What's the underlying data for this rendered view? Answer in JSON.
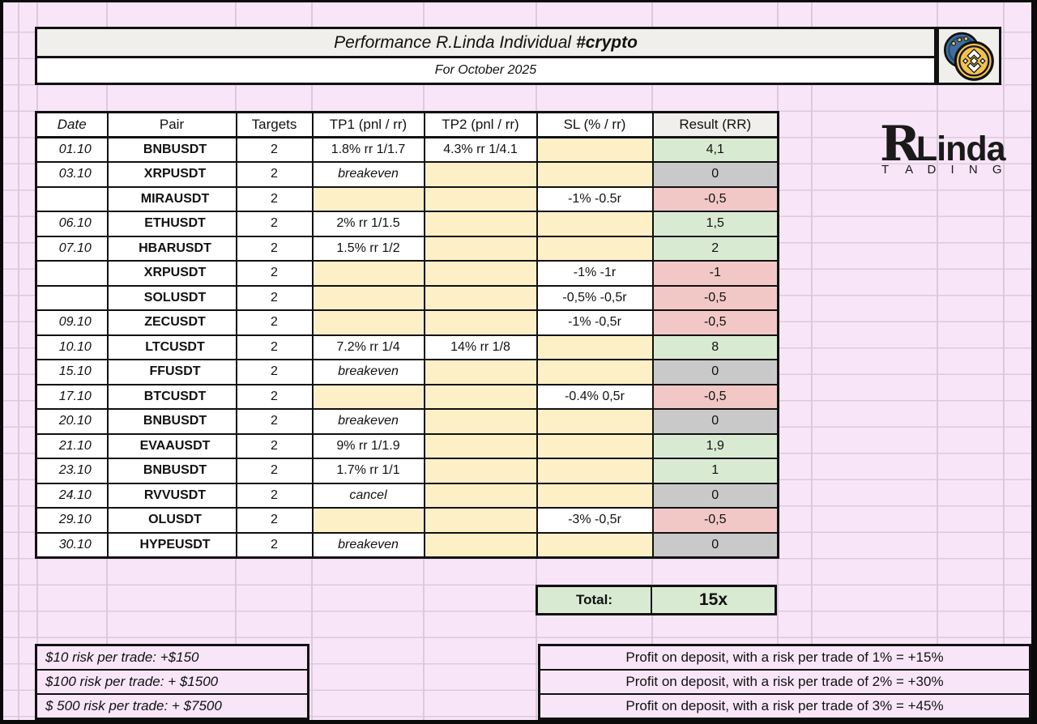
{
  "title": {
    "main": "Performance R.Linda Individual",
    "tag": "#crypto"
  },
  "subtitle": "For October 2025",
  "brand": {
    "r": "R",
    "name": "Linda",
    "sub_left": "T",
    "sub_right": "A D I N G",
    "coin_icons": "binance-coins-icon"
  },
  "table": {
    "headers": [
      "Date",
      "Pair",
      "Targets",
      "TP1 (pnl / rr)",
      "TP2 (pnl / rr)",
      "SL (% / rr)",
      "Result (RR)"
    ],
    "rows": [
      {
        "date": "01.10",
        "pair": "BNBUSDT",
        "targets": "2",
        "tp1": {
          "text": "1.8% rr 1/1.7",
          "kind": "value"
        },
        "tp2": {
          "text": "4.3% rr 1/4.1",
          "kind": "value"
        },
        "sl": {
          "text": "",
          "kind": "empty"
        },
        "result": {
          "text": "4,1",
          "kind": "green"
        }
      },
      {
        "date": "03.10",
        "pair": "XRPUSDT",
        "targets": "2",
        "tp1": {
          "text": "breakeven",
          "kind": "note"
        },
        "tp2": {
          "text": "",
          "kind": "empty"
        },
        "sl": {
          "text": "",
          "kind": "empty"
        },
        "result": {
          "text": "0",
          "kind": "gray"
        }
      },
      {
        "date": "",
        "pair": "MIRAUSDT",
        "targets": "2",
        "tp1": {
          "text": "",
          "kind": "empty"
        },
        "tp2": {
          "text": "",
          "kind": "empty"
        },
        "sl": {
          "text": "-1% -0.5r",
          "kind": "value"
        },
        "result": {
          "text": "-0,5",
          "kind": "red"
        }
      },
      {
        "date": "06.10",
        "pair": "ETHUSDT",
        "targets": "2",
        "tp1": {
          "text": "2% rr 1/1.5",
          "kind": "value"
        },
        "tp2": {
          "text": "",
          "kind": "empty"
        },
        "sl": {
          "text": "",
          "kind": "empty"
        },
        "result": {
          "text": "1,5",
          "kind": "green"
        }
      },
      {
        "date": "07.10",
        "pair": "HBARUSDT",
        "targets": "2",
        "tp1": {
          "text": "1.5% rr 1/2",
          "kind": "value"
        },
        "tp2": {
          "text": "",
          "kind": "empty"
        },
        "sl": {
          "text": "",
          "kind": "empty"
        },
        "result": {
          "text": "2",
          "kind": "green"
        }
      },
      {
        "date": "",
        "pair": "XRPUSDT",
        "targets": "2",
        "tp1": {
          "text": "",
          "kind": "empty"
        },
        "tp2": {
          "text": "",
          "kind": "empty"
        },
        "sl": {
          "text": "-1% -1r",
          "kind": "value"
        },
        "result": {
          "text": "-1",
          "kind": "red"
        }
      },
      {
        "date": "",
        "pair": "SOLUSDT",
        "targets": "2",
        "tp1": {
          "text": "",
          "kind": "empty"
        },
        "tp2": {
          "text": "",
          "kind": "empty"
        },
        "sl": {
          "text": "-0,5% -0,5r",
          "kind": "value"
        },
        "result": {
          "text": "-0,5",
          "kind": "red"
        }
      },
      {
        "date": "09.10",
        "pair": "ZECUSDT",
        "targets": "2",
        "tp1": {
          "text": "",
          "kind": "empty"
        },
        "tp2": {
          "text": "",
          "kind": "empty"
        },
        "sl": {
          "text": "-1% -0,5r",
          "kind": "value"
        },
        "result": {
          "text": "-0,5",
          "kind": "red"
        }
      },
      {
        "date": "10.10",
        "pair": "LTCUSDT",
        "targets": "2",
        "tp1": {
          "text": "7.2% rr 1/4",
          "kind": "value"
        },
        "tp2": {
          "text": "14% rr 1/8",
          "kind": "value"
        },
        "sl": {
          "text": "",
          "kind": "empty"
        },
        "result": {
          "text": "8",
          "kind": "green"
        }
      },
      {
        "date": "15.10",
        "pair": "FFUSDT",
        "targets": "2",
        "tp1": {
          "text": "breakeven",
          "kind": "note"
        },
        "tp2": {
          "text": "",
          "kind": "empty"
        },
        "sl": {
          "text": "",
          "kind": "empty"
        },
        "result": {
          "text": "0",
          "kind": "gray"
        }
      },
      {
        "date": "17.10",
        "pair": "BTCUSDT",
        "targets": "2",
        "tp1": {
          "text": "",
          "kind": "empty"
        },
        "tp2": {
          "text": "",
          "kind": "empty"
        },
        "sl": {
          "text": "-0.4% 0,5r",
          "kind": "value"
        },
        "result": {
          "text": "-0,5",
          "kind": "red"
        }
      },
      {
        "date": "20.10",
        "pair": "BNBUSDT",
        "targets": "2",
        "tp1": {
          "text": "breakeven",
          "kind": "note"
        },
        "tp2": {
          "text": "",
          "kind": "empty"
        },
        "sl": {
          "text": "",
          "kind": "empty"
        },
        "result": {
          "text": "0",
          "kind": "gray"
        }
      },
      {
        "date": "21.10",
        "pair": "EVAAUSDT",
        "targets": "2",
        "tp1": {
          "text": "9% rr 1/1.9",
          "kind": "value"
        },
        "tp2": {
          "text": "",
          "kind": "empty"
        },
        "sl": {
          "text": "",
          "kind": "empty"
        },
        "result": {
          "text": "1,9",
          "kind": "green"
        }
      },
      {
        "date": "23.10",
        "pair": "BNBUSDT",
        "targets": "2",
        "tp1": {
          "text": "1.7% rr 1/1",
          "kind": "value"
        },
        "tp2": {
          "text": "",
          "kind": "empty"
        },
        "sl": {
          "text": "",
          "kind": "empty"
        },
        "result": {
          "text": "1",
          "kind": "green"
        }
      },
      {
        "date": "24.10",
        "pair": "RVVUSDT",
        "targets": "2",
        "tp1": {
          "text": "cancel",
          "kind": "note"
        },
        "tp2": {
          "text": "",
          "kind": "empty"
        },
        "sl": {
          "text": "",
          "kind": "empty"
        },
        "result": {
          "text": "0",
          "kind": "gray"
        }
      },
      {
        "date": "29.10",
        "pair": "OLUSDT",
        "targets": "2",
        "tp1": {
          "text": "",
          "kind": "empty"
        },
        "tp2": {
          "text": "",
          "kind": "empty"
        },
        "sl": {
          "text": "-3% -0,5r",
          "kind": "value"
        },
        "result": {
          "text": "-0,5",
          "kind": "red"
        }
      },
      {
        "date": "30.10",
        "pair": "HYPEUSDT",
        "targets": "2",
        "tp1": {
          "text": "breakeven",
          "kind": "note"
        },
        "tp2": {
          "text": "",
          "kind": "empty"
        },
        "sl": {
          "text": "",
          "kind": "empty"
        },
        "result": {
          "text": "0",
          "kind": "gray"
        }
      }
    ],
    "total_label": "Total:",
    "total_value": "15x"
  },
  "risk_summary": [
    "$10 risk per trade: +$150",
    "$100 risk per trade: + $1500",
    "$ 500 risk per trade: + $7500"
  ],
  "profit_summary": [
    "Profit on deposit, with a risk per trade of 1% = +15%",
    "Profit on deposit, with a risk per trade of 2% = +30%",
    "Profit on deposit, with a risk per trade of 3% = +45%"
  ],
  "colors": {
    "page_bg": "#f8e6f8",
    "grid_line": "#ddc9dd",
    "cell_yellow": "#fdf0c6",
    "result_green": "#d9ead3",
    "result_red": "#f1c8c6",
    "result_gray": "#c9c9c9",
    "header_gray": "#f0efec",
    "coin_gold": "#f2c24e",
    "coin_blue": "#3f6fa0"
  }
}
